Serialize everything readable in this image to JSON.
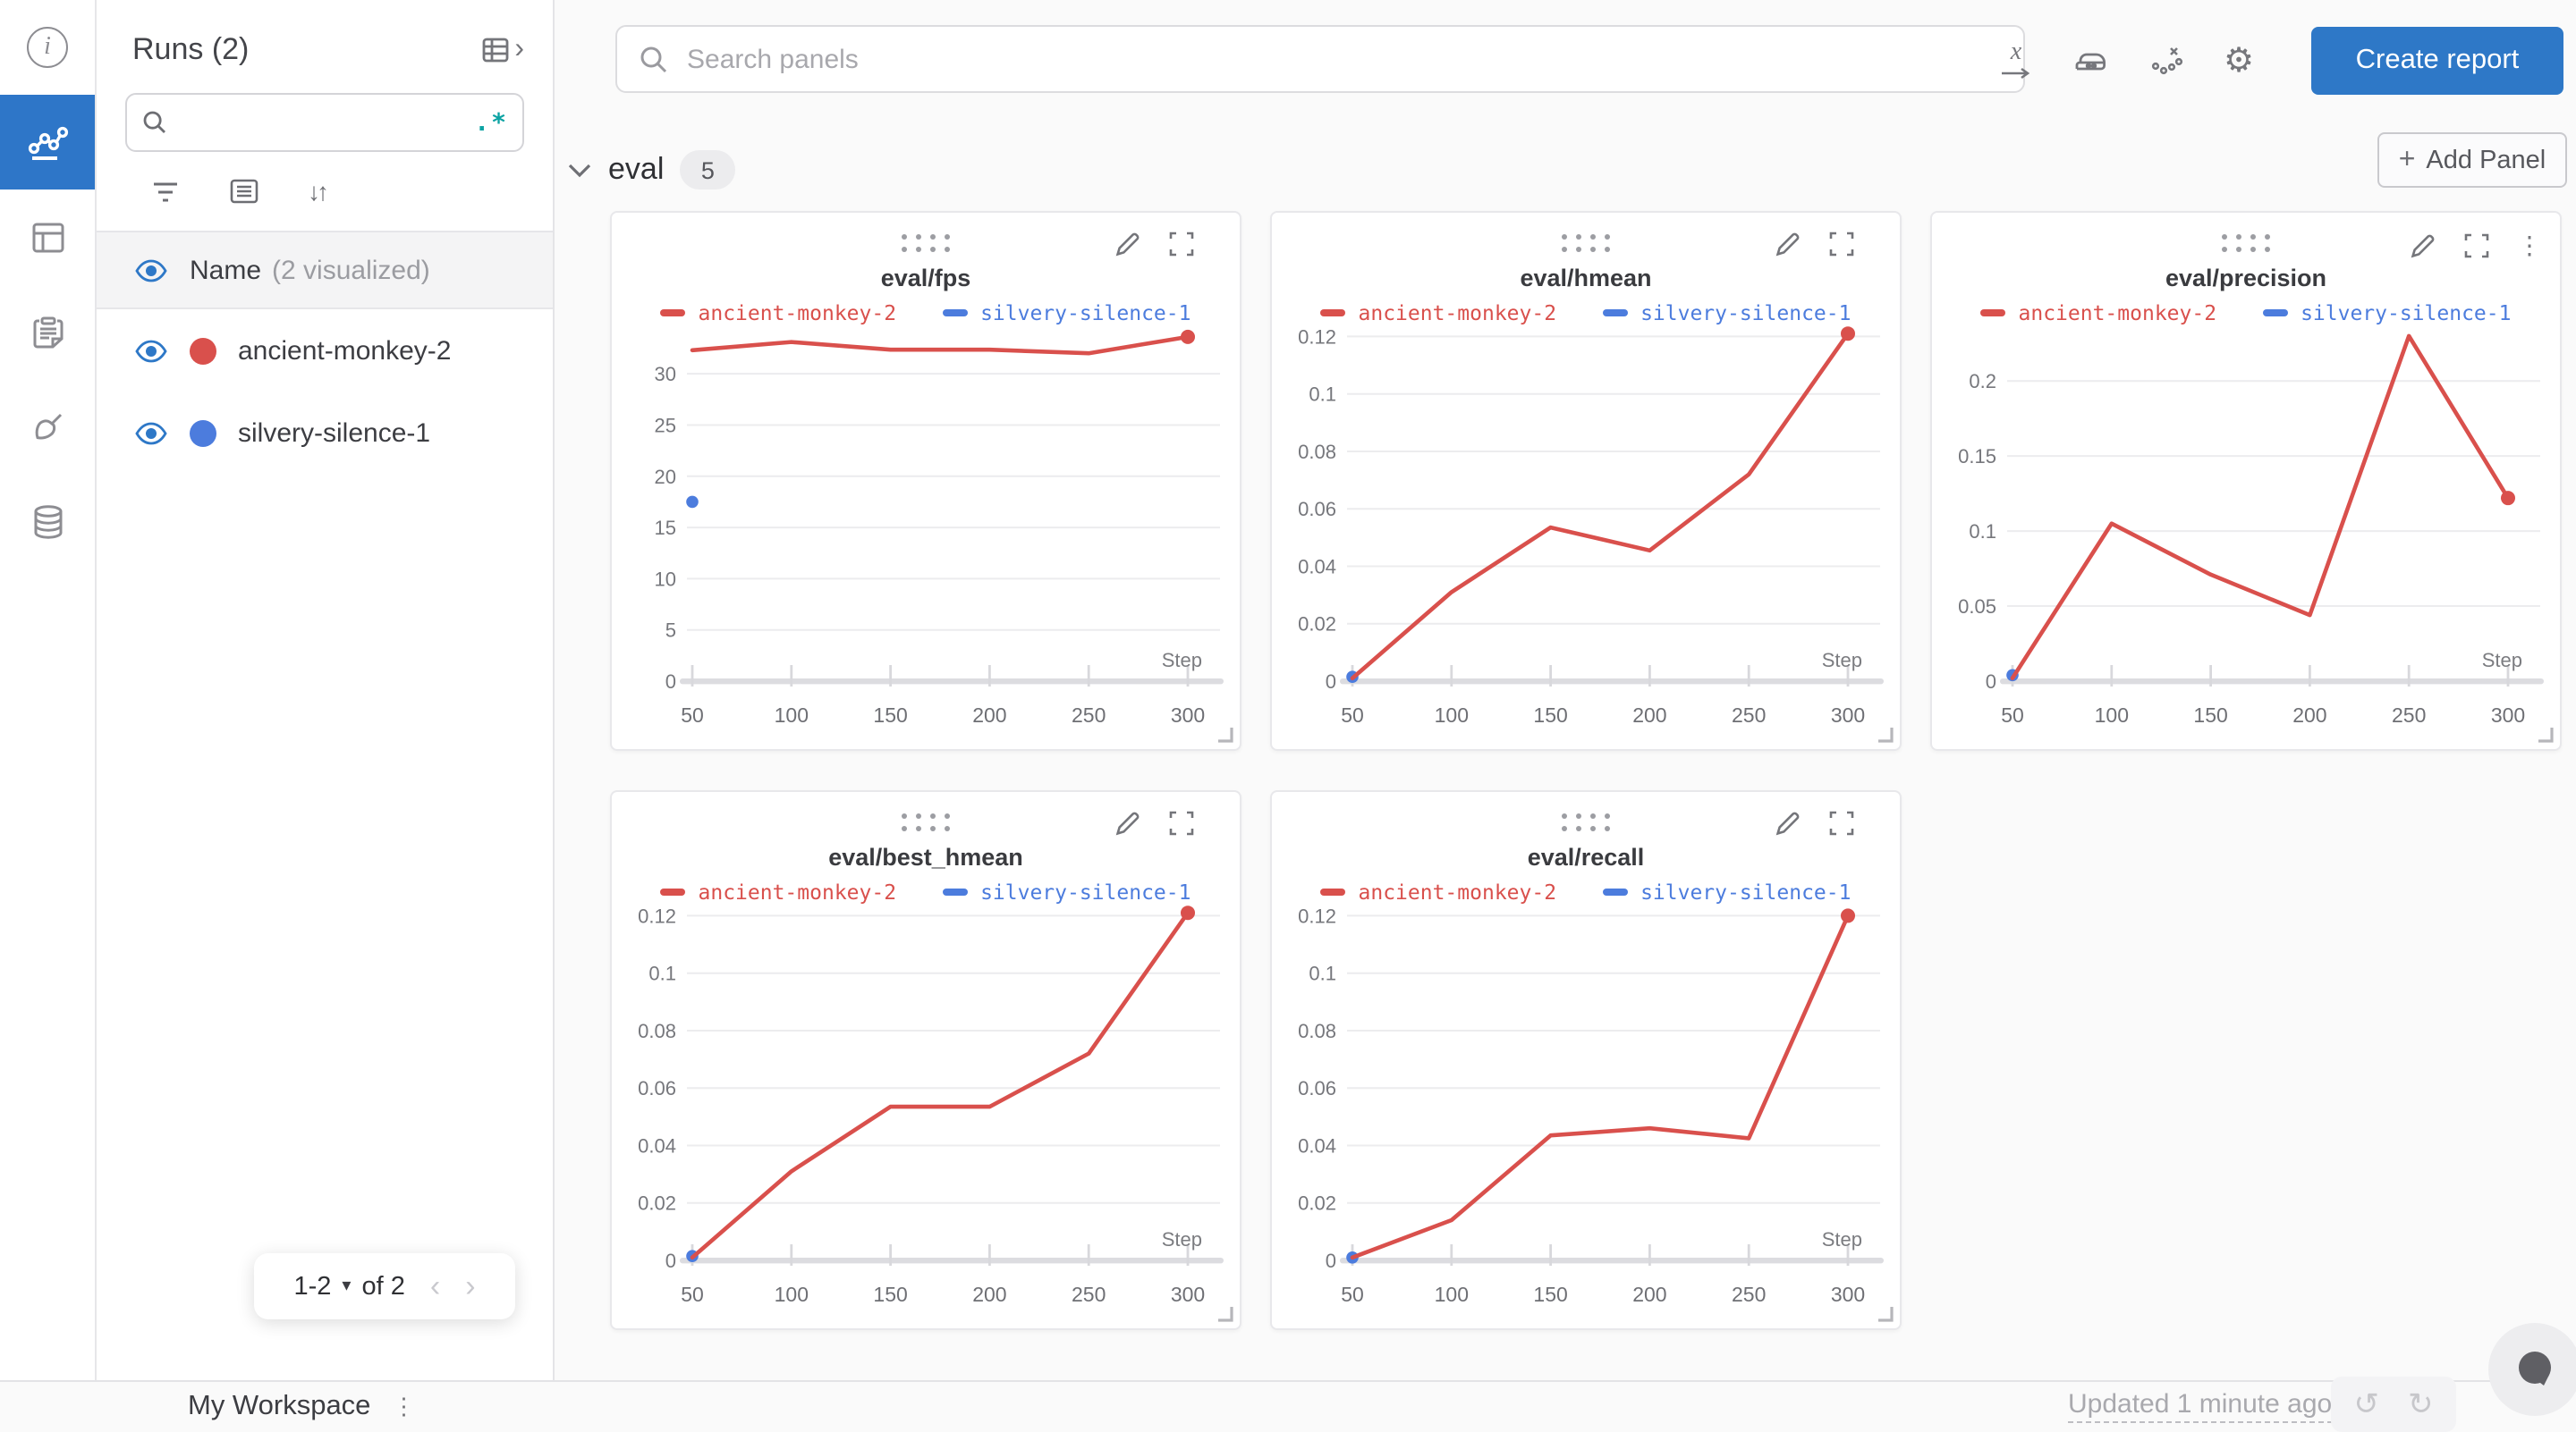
{
  "icons": {
    "info": "i",
    "regex": ".*",
    "sort": "↓↑",
    "chevron_right": "›",
    "chevron_left": "‹",
    "dropdown": "▾",
    "section_chevron": "⌄",
    "x_axis": "x",
    "gear": "⚙",
    "kebab": "⋮",
    "plus": "+",
    "undo": "↺",
    "redo": "↻"
  },
  "runs_panel": {
    "title": "Runs (2)",
    "search_placeholder": "",
    "name_header": "Name",
    "name_sub": "(2 visualized)",
    "runs": [
      {
        "name": "ancient-monkey-2",
        "color": "#d9504c"
      },
      {
        "name": "silvery-silence-1",
        "color": "#4c7cdd"
      }
    ],
    "pagination": {
      "range": "1-2",
      "of": "of 2"
    }
  },
  "topbar": {
    "search_placeholder": "Search panels",
    "create_report": "Create report"
  },
  "section": {
    "name": "eval",
    "count": "5",
    "add_panel": "Add Panel"
  },
  "bottombar": {
    "workspace": "My Workspace",
    "updated": "Updated 1 minute ago"
  },
  "chart_data": [
    {
      "type": "line",
      "title": "eval/fps",
      "xlabel": "Step",
      "x_ticks": [
        50,
        100,
        150,
        200,
        250,
        300
      ],
      "ytick_values": [
        0,
        5,
        10,
        15,
        20,
        25,
        30
      ],
      "ytick_labels": [
        "0",
        "5",
        "10",
        "15",
        "20",
        "25",
        "30"
      ],
      "ylim": [
        0,
        34.2
      ],
      "grid": true,
      "legend_position": "top",
      "hovered": false,
      "series": [
        {
          "name": "ancient-monkey-2",
          "color": "#d9504c",
          "points": [
            [
              50,
              32.3
            ],
            [
              100,
              33.1
            ],
            [
              150,
              32.35
            ],
            [
              200,
              32.35
            ],
            [
              250,
              32.0
            ],
            [
              300,
              33.6
            ]
          ]
        },
        {
          "name": "silvery-silence-1",
          "color": "#4c7cdd",
          "points": [
            [
              50,
              17.5
            ]
          ]
        }
      ]
    },
    {
      "type": "line",
      "title": "eval/hmean",
      "xlabel": "Step",
      "x_ticks": [
        50,
        100,
        150,
        200,
        250,
        300
      ],
      "ytick_values": [
        0,
        0.02,
        0.04,
        0.06,
        0.08,
        0.1,
        0.12
      ],
      "ytick_labels": [
        "0",
        "0.02",
        "0.04",
        "0.06",
        "0.08",
        "0.1",
        "0.12"
      ],
      "ylim": [
        0,
        0.122
      ],
      "grid": true,
      "legend_position": "top",
      "hovered": false,
      "series": [
        {
          "name": "ancient-monkey-2",
          "color": "#d9504c",
          "points": [
            [
              50,
              0.001
            ],
            [
              100,
              0.031
            ],
            [
              150,
              0.0535
            ],
            [
              200,
              0.0455
            ],
            [
              250,
              0.072
            ],
            [
              300,
              0.121
            ]
          ]
        },
        {
          "name": "silvery-silence-1",
          "color": "#4c7cdd",
          "points": [
            [
              50,
              0.0015
            ]
          ]
        }
      ]
    },
    {
      "type": "line",
      "title": "eval/precision",
      "xlabel": "Step",
      "x_ticks": [
        50,
        100,
        150,
        200,
        250,
        300
      ],
      "ytick_values": [
        0,
        0.05,
        0.1,
        0.15,
        0.2
      ],
      "ytick_labels": [
        "0",
        "0.05",
        "0.1",
        "0.15",
        "0.2"
      ],
      "ylim": [
        0,
        0.2335
      ],
      "grid": true,
      "legend_position": "top",
      "hovered": true,
      "series": [
        {
          "name": "ancient-monkey-2",
          "color": "#d9504c",
          "points": [
            [
              50,
              0.002
            ],
            [
              100,
              0.105
            ],
            [
              150,
              0.071
            ],
            [
              200,
              0.044
            ],
            [
              250,
              0.23
            ],
            [
              300,
              0.122
            ]
          ]
        },
        {
          "name": "silvery-silence-1",
          "color": "#4c7cdd",
          "points": [
            [
              50,
              0.004
            ]
          ]
        }
      ]
    },
    {
      "type": "line",
      "title": "eval/best_hmean",
      "xlabel": "Step",
      "x_ticks": [
        50,
        100,
        150,
        200,
        250,
        300
      ],
      "ytick_values": [
        0,
        0.02,
        0.04,
        0.06,
        0.08,
        0.1,
        0.12
      ],
      "ytick_labels": [
        "0",
        "0.02",
        "0.04",
        "0.06",
        "0.08",
        "0.1",
        "0.12"
      ],
      "ylim": [
        0,
        0.122
      ],
      "grid": true,
      "legend_position": "top",
      "hovered": false,
      "series": [
        {
          "name": "ancient-monkey-2",
          "color": "#d9504c",
          "points": [
            [
              50,
              0.001
            ],
            [
              100,
              0.031
            ],
            [
              150,
              0.0535
            ],
            [
              200,
              0.0535
            ],
            [
              250,
              0.072
            ],
            [
              300,
              0.121
            ]
          ]
        },
        {
          "name": "silvery-silence-1",
          "color": "#4c7cdd",
          "points": [
            [
              50,
              0.0015
            ]
          ]
        }
      ]
    },
    {
      "type": "line",
      "title": "eval/recall",
      "xlabel": "Step",
      "x_ticks": [
        50,
        100,
        150,
        200,
        250,
        300
      ],
      "ytick_values": [
        0,
        0.02,
        0.04,
        0.06,
        0.08,
        0.1,
        0.12
      ],
      "ytick_labels": [
        "0",
        "0.02",
        "0.04",
        "0.06",
        "0.08",
        "0.1",
        "0.12"
      ],
      "ylim": [
        0,
        0.122
      ],
      "grid": true,
      "legend_position": "top",
      "hovered": false,
      "series": [
        {
          "name": "ancient-monkey-2",
          "color": "#d9504c",
          "points": [
            [
              50,
              0.001
            ],
            [
              100,
              0.014
            ],
            [
              150,
              0.0435
            ],
            [
              200,
              0.046
            ],
            [
              250,
              0.0425
            ],
            [
              300,
              0.12
            ]
          ]
        },
        {
          "name": "silvery-silence-1",
          "color": "#4c7cdd",
          "points": [
            [
              50,
              0.001
            ]
          ]
        }
      ]
    }
  ]
}
